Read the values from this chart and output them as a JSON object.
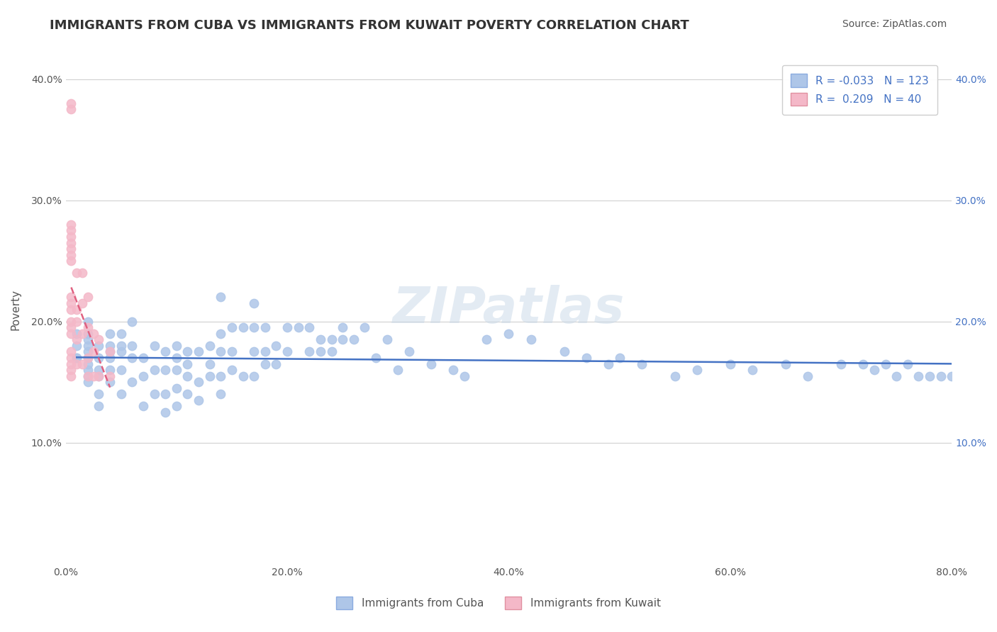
{
  "title": "IMMIGRANTS FROM CUBA VS IMMIGRANTS FROM KUWAIT POVERTY CORRELATION CHART",
  "source": "Source: ZipAtlas.com",
  "ylabel": "Poverty",
  "xlabel_ticks": [
    "0.0%",
    "20.0%",
    "40.0%",
    "60.0%",
    "80.0%"
  ],
  "ylabel_ticks": [
    "10.0%",
    "20.0%",
    "30.0%",
    "40.0%"
  ],
  "xlim": [
    0.0,
    0.8
  ],
  "ylim": [
    0.0,
    0.42
  ],
  "legend_entries": [
    {
      "label": "R =  -0.033   N = 123",
      "color": "#aec6e8"
    },
    {
      "label": "R =   0.209   N = 40",
      "color": "#f4a7b9"
    }
  ],
  "watermark": "ZIPatlas",
  "cuba_x": [
    0.01,
    0.01,
    0.01,
    0.01,
    0.02,
    0.02,
    0.02,
    0.02,
    0.02,
    0.02,
    0.02,
    0.02,
    0.02,
    0.02,
    0.03,
    0.03,
    0.03,
    0.03,
    0.03,
    0.03,
    0.04,
    0.04,
    0.04,
    0.04,
    0.04,
    0.04,
    0.05,
    0.05,
    0.05,
    0.05,
    0.05,
    0.06,
    0.06,
    0.06,
    0.06,
    0.07,
    0.07,
    0.07,
    0.08,
    0.08,
    0.08,
    0.09,
    0.09,
    0.09,
    0.09,
    0.1,
    0.1,
    0.1,
    0.1,
    0.1,
    0.11,
    0.11,
    0.11,
    0.11,
    0.12,
    0.12,
    0.12,
    0.13,
    0.13,
    0.13,
    0.14,
    0.14,
    0.14,
    0.14,
    0.14,
    0.15,
    0.15,
    0.15,
    0.16,
    0.16,
    0.17,
    0.17,
    0.17,
    0.17,
    0.18,
    0.18,
    0.18,
    0.19,
    0.19,
    0.2,
    0.2,
    0.21,
    0.22,
    0.22,
    0.23,
    0.23,
    0.24,
    0.24,
    0.25,
    0.25,
    0.26,
    0.27,
    0.28,
    0.29,
    0.3,
    0.31,
    0.33,
    0.35,
    0.36,
    0.38,
    0.4,
    0.42,
    0.45,
    0.47,
    0.49,
    0.5,
    0.52,
    0.55,
    0.57,
    0.6,
    0.62,
    0.65,
    0.67,
    0.7,
    0.72,
    0.73,
    0.74,
    0.75,
    0.76,
    0.77,
    0.78,
    0.79,
    0.8
  ],
  "cuba_y": [
    0.17,
    0.17,
    0.18,
    0.19,
    0.15,
    0.155,
    0.16,
    0.165,
    0.17,
    0.175,
    0.18,
    0.185,
    0.19,
    0.2,
    0.13,
    0.14,
    0.155,
    0.16,
    0.17,
    0.18,
    0.15,
    0.16,
    0.17,
    0.175,
    0.18,
    0.19,
    0.14,
    0.16,
    0.175,
    0.18,
    0.19,
    0.15,
    0.17,
    0.18,
    0.2,
    0.13,
    0.155,
    0.17,
    0.14,
    0.16,
    0.18,
    0.125,
    0.14,
    0.16,
    0.175,
    0.13,
    0.145,
    0.16,
    0.17,
    0.18,
    0.14,
    0.155,
    0.165,
    0.175,
    0.135,
    0.15,
    0.175,
    0.155,
    0.165,
    0.18,
    0.14,
    0.155,
    0.175,
    0.19,
    0.22,
    0.16,
    0.175,
    0.195,
    0.155,
    0.195,
    0.155,
    0.175,
    0.195,
    0.215,
    0.165,
    0.175,
    0.195,
    0.165,
    0.18,
    0.175,
    0.195,
    0.195,
    0.175,
    0.195,
    0.175,
    0.185,
    0.175,
    0.185,
    0.185,
    0.195,
    0.185,
    0.195,
    0.17,
    0.185,
    0.16,
    0.175,
    0.165,
    0.16,
    0.155,
    0.185,
    0.19,
    0.185,
    0.175,
    0.17,
    0.165,
    0.17,
    0.165,
    0.155,
    0.16,
    0.165,
    0.16,
    0.165,
    0.155,
    0.165,
    0.165,
    0.16,
    0.165,
    0.155,
    0.165,
    0.155,
    0.155,
    0.155,
    0.155
  ],
  "kuwait_x": [
    0.005,
    0.005,
    0.005,
    0.005,
    0.005,
    0.005,
    0.005,
    0.005,
    0.005,
    0.005,
    0.005,
    0.005,
    0.005,
    0.005,
    0.005,
    0.005,
    0.005,
    0.005,
    0.005,
    0.005,
    0.01,
    0.01,
    0.01,
    0.01,
    0.01,
    0.015,
    0.015,
    0.015,
    0.015,
    0.02,
    0.02,
    0.02,
    0.02,
    0.025,
    0.025,
    0.025,
    0.03,
    0.03,
    0.04,
    0.04
  ],
  "kuwait_y": [
    0.38,
    0.375,
    0.28,
    0.275,
    0.27,
    0.265,
    0.26,
    0.255,
    0.25,
    0.22,
    0.215,
    0.21,
    0.2,
    0.195,
    0.19,
    0.175,
    0.17,
    0.165,
    0.16,
    0.155,
    0.24,
    0.21,
    0.2,
    0.185,
    0.165,
    0.24,
    0.215,
    0.19,
    0.165,
    0.22,
    0.195,
    0.17,
    0.155,
    0.19,
    0.175,
    0.155,
    0.185,
    0.155,
    0.175,
    0.155
  ],
  "cuba_color": "#aec6e8",
  "kuwait_color": "#f4b8c8",
  "cuba_line_color": "#4472c4",
  "kuwait_line_color": "#e06080",
  "trend_line_style": "--",
  "background_color": "#ffffff",
  "grid_color": "#d0d0d0",
  "title_color": "#333333",
  "label_color": "#555555",
  "tick_color": "#555555",
  "watermark_color": "#c8d8e8",
  "watermark_fontsize": 52,
  "title_fontsize": 13,
  "axis_label_fontsize": 11,
  "tick_fontsize": 10,
  "legend_fontsize": 11,
  "source_fontsize": 10
}
